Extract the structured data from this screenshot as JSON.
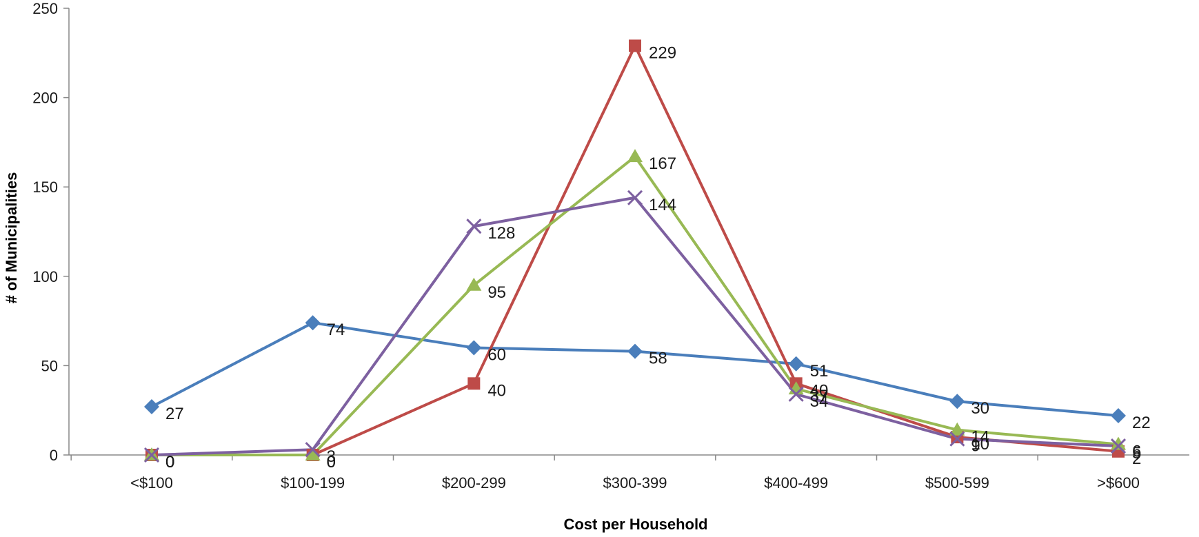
{
  "chart_data": {
    "type": "line",
    "title": "",
    "xlabel": "Cost per Household",
    "ylabel": "# of Municipalities",
    "categories": [
      "<$100",
      "$100-199",
      "$200-299",
      "$300-399",
      "$400-499",
      "$500-599",
      ">$600"
    ],
    "ylim": [
      0,
      250
    ],
    "yticks": [
      0,
      50,
      100,
      150,
      200,
      250
    ],
    "grid": false,
    "legend": "none",
    "series": [
      {
        "color": "#4a7ebb",
        "marker": "diamond",
        "values": [
          27,
          74,
          60,
          58,
          51,
          30,
          22
        ]
      },
      {
        "color": "#be4b48",
        "marker": "square",
        "values": [
          0,
          0,
          40,
          229,
          40,
          10,
          2
        ]
      },
      {
        "color": "#98b954",
        "marker": "triangle",
        "values": [
          0,
          0,
          95,
          167,
          37,
          14,
          6
        ]
      },
      {
        "color": "#7d60a0",
        "marker": "x",
        "values": [
          0,
          3,
          128,
          144,
          34,
          9,
          5
        ]
      }
    ]
  }
}
